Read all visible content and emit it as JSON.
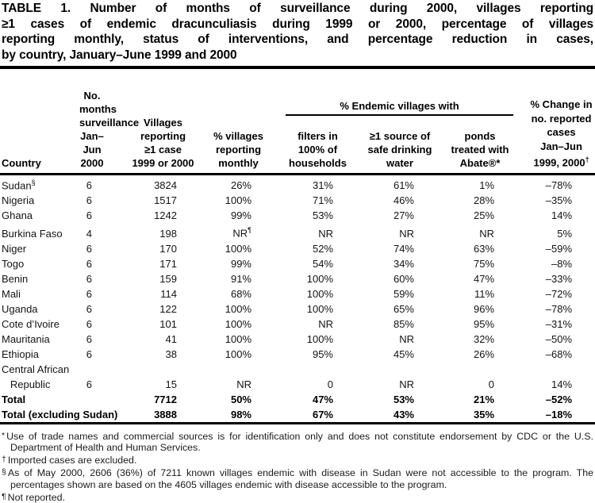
{
  "title": {
    "justified_lines": "TABLE 1. Number of months of surveillance during 2000, villages reporting\n≥1 cases of endemic dracunculiasis during 1999 or 2000, percentage of villages\nreporting monthly, status of interventions, and percentage reduction in cases,",
    "last_line": "by country, January–June 1999 and 2000"
  },
  "table": {
    "columns": {
      "country": "Country",
      "months": "No. months\nsurveillance\nJan–Jun\n2000",
      "villages": "Villages\nreporting\n≥1 case\n1999 or 2000",
      "pct_reporting": "% villages\nreporting\nmonthly",
      "group": "% Endemic villages with",
      "filters": "filters in\n100% of\nhouseholds",
      "safe_water": "≥1 source of\nsafe drinking\nwater",
      "ponds": "ponds\ntreated with\nAbate®*",
      "change": "% Change in\nno. reported\ncases\nJan–Jun\n1999, 2000^†"
    },
    "rows": [
      {
        "country": "Sudan^§",
        "months": "6",
        "villages": "3824",
        "pct_reporting": "26%",
        "filters": "31%",
        "safe_water": "61%",
        "ponds": "1%",
        "change": "–78%"
      },
      {
        "country": "Nigeria",
        "months": "6",
        "villages": "1517",
        "pct_reporting": "100%",
        "filters": "71%",
        "safe_water": "46%",
        "ponds": "28%",
        "change": "–35%"
      },
      {
        "country": "Ghana",
        "months": "6",
        "villages": "1242",
        "pct_reporting": "99%",
        "filters": "53%",
        "safe_water": "27%",
        "ponds": "25%",
        "change": "14%"
      },
      {
        "country": "Burkina Faso",
        "months": "4",
        "villages": "198",
        "pct_reporting": "NR^¶",
        "filters": "NR",
        "safe_water": "NR",
        "ponds": "NR",
        "change": "5%"
      },
      {
        "country": "Niger",
        "months": "6",
        "villages": "170",
        "pct_reporting": "100%",
        "filters": "52%",
        "safe_water": "74%",
        "ponds": "63%",
        "change": "–59%"
      },
      {
        "country": "Togo",
        "months": "6",
        "villages": "171",
        "pct_reporting": "99%",
        "filters": "54%",
        "safe_water": "34%",
        "ponds": "75%",
        "change": "–8%"
      },
      {
        "country": "Benin",
        "months": "6",
        "villages": "159",
        "pct_reporting": "91%",
        "filters": "100%",
        "safe_water": "60%",
        "ponds": "47%",
        "change": "–33%"
      },
      {
        "country": "Mali",
        "months": "6",
        "villages": "114",
        "pct_reporting": "68%",
        "filters": "100%",
        "safe_water": "59%",
        "ponds": "11%",
        "change": "–72%"
      },
      {
        "country": "Uganda",
        "months": "6",
        "villages": "122",
        "pct_reporting": "100%",
        "filters": "100%",
        "safe_water": "65%",
        "ponds": "96%",
        "change": "–78%"
      },
      {
        "country": "Cote d’Ivoire",
        "months": "6",
        "villages": "101",
        "pct_reporting": "100%",
        "filters": "NR",
        "safe_water": "85%",
        "ponds": "95%",
        "change": "–31%"
      },
      {
        "country": "Mauritania",
        "months": "6",
        "villages": "41",
        "pct_reporting": "100%",
        "filters": "100%",
        "safe_water": "NR",
        "ponds": "32%",
        "change": "–50%"
      },
      {
        "country": "Ethiopia",
        "months": "6",
        "villages": "38",
        "pct_reporting": "100%",
        "filters": "95%",
        "safe_water": "45%",
        "ponds": "26%",
        "change": "–68%"
      },
      {
        "country": "Central African\n   Republic",
        "months": "6",
        "villages": "15",
        "pct_reporting": "NR",
        "filters": "0",
        "safe_water": "NR",
        "ponds": "0",
        "change": "14%"
      }
    ],
    "totals": [
      {
        "country": "Total",
        "months": "",
        "villages": "7712",
        "pct_reporting": "50%",
        "filters": "47%",
        "safe_water": "53%",
        "ponds": "21%",
        "change": "–52%"
      },
      {
        "country": "Total (excluding Sudan)",
        "months": "",
        "villages": "3888",
        "pct_reporting": "98%",
        "filters": "67%",
        "safe_water": "43%",
        "ponds": "35%",
        "change": "–18%"
      }
    ]
  },
  "footnotes": [
    {
      "marker": "*",
      "text": "Use of trade names and commercial sources is for identification only and does not constitute endorsement by CDC or the U.S. Department of Health and Human Services."
    },
    {
      "marker": "†",
      "text": "Imported cases are excluded."
    },
    {
      "marker": "§",
      "text": "As of May 2000, 2606 (36%) of 7211 known villages endemic with disease in Sudan were not accessible to the program. The percentages shown are based on the 4605 villages endemic with disease accessible to the program."
    },
    {
      "marker": "¶",
      "text": "Not reported."
    }
  ]
}
